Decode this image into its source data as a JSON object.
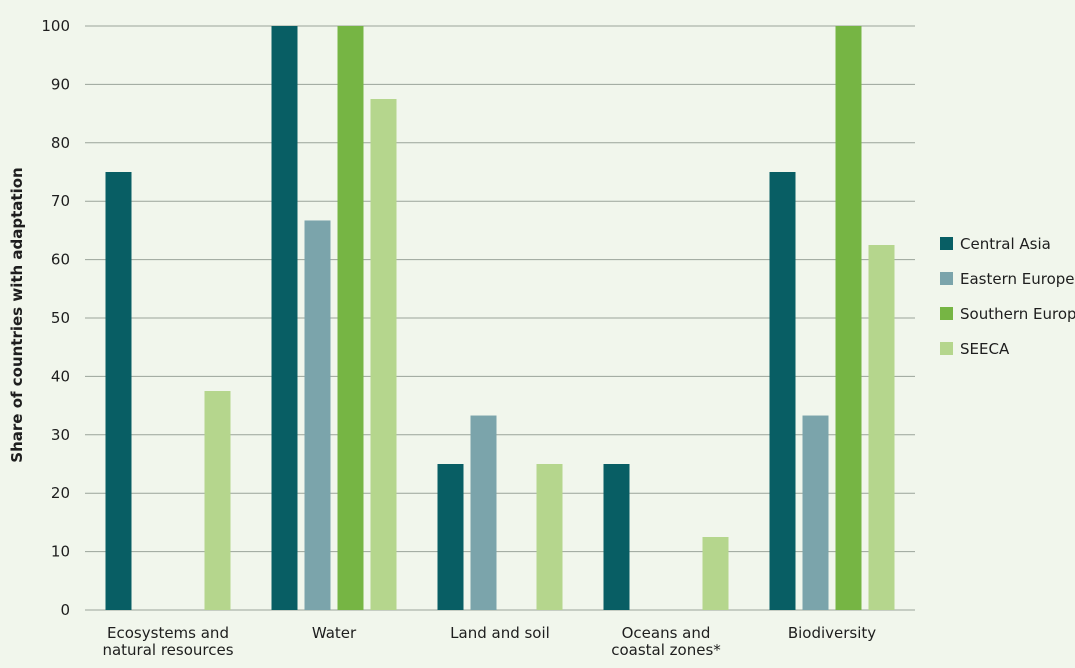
{
  "chart_data": {
    "type": "bar",
    "title": "",
    "xlabel": "",
    "ylabel": "Share of countries with adaptation",
    "ylim": [
      0,
      100
    ],
    "yticks": [
      0,
      10,
      20,
      30,
      40,
      50,
      60,
      70,
      80,
      90,
      100
    ],
    "grid": true,
    "legend_position": "right",
    "categories": [
      [
        "Ecosystems and",
        "natural resources"
      ],
      [
        "Water"
      ],
      [
        "Land and soil"
      ],
      [
        "Oceans and",
        "coastal zones*"
      ],
      [
        "Biodiversity"
      ]
    ],
    "series": [
      {
        "name": "Central Asia",
        "color": "#085e64",
        "values": [
          75,
          100,
          25,
          25,
          75
        ]
      },
      {
        "name": "Eastern Europe",
        "color": "#7ba4ab",
        "values": [
          0,
          66.7,
          33.3,
          0,
          33.3
        ]
      },
      {
        "name": "Southern Europe",
        "color": "#76b544",
        "values": [
          0,
          100,
          0,
          0,
          100
        ]
      },
      {
        "name": "SEECA",
        "color": "#b5d68d",
        "values": [
          37.5,
          87.5,
          25,
          12.5,
          62.5
        ]
      }
    ]
  }
}
